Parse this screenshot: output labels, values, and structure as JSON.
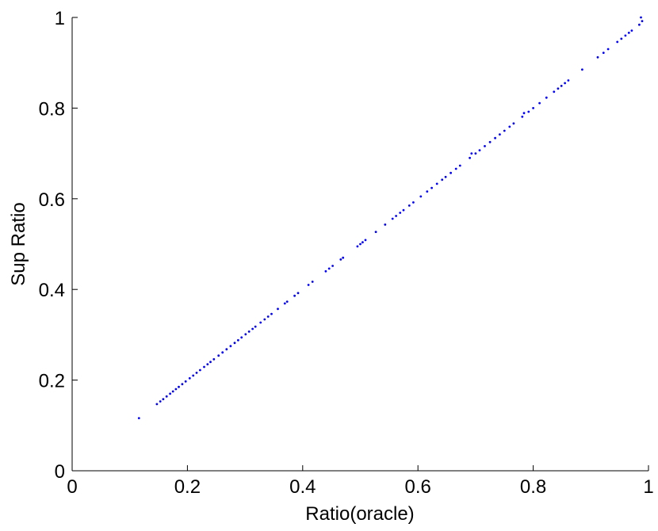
{
  "chart_data": {
    "type": "scatter",
    "title": "",
    "xlabel": "Ratio(oracle)",
    "ylabel": "Sup Ratio",
    "xlim": [
      0,
      1
    ],
    "ylim": [
      0,
      1
    ],
    "x_ticks": [
      "0",
      "0.2",
      "0.4",
      "0.6",
      "0.8",
      "1"
    ],
    "y_ticks": [
      "0",
      "0.2",
      "0.4",
      "0.6",
      "0.8",
      "1"
    ],
    "grid": false,
    "legend": "none",
    "marker_color": "#0000ff",
    "series": [
      {
        "points": [
          [
            0.116,
            0.116
          ],
          [
            0.147,
            0.147
          ],
          [
            0.153,
            0.153
          ],
          [
            0.158,
            0.158
          ],
          [
            0.164,
            0.164
          ],
          [
            0.17,
            0.17
          ],
          [
            0.175,
            0.175
          ],
          [
            0.18,
            0.18
          ],
          [
            0.185,
            0.185
          ],
          [
            0.191,
            0.191
          ],
          [
            0.197,
            0.197
          ],
          [
            0.204,
            0.204
          ],
          [
            0.21,
            0.21
          ],
          [
            0.216,
            0.216
          ],
          [
            0.222,
            0.222
          ],
          [
            0.229,
            0.229
          ],
          [
            0.235,
            0.235
          ],
          [
            0.24,
            0.24
          ],
          [
            0.246,
            0.246
          ],
          [
            0.254,
            0.254
          ],
          [
            0.261,
            0.261
          ],
          [
            0.268,
            0.268
          ],
          [
            0.275,
            0.275
          ],
          [
            0.282,
            0.282
          ],
          [
            0.288,
            0.288
          ],
          [
            0.294,
            0.294
          ],
          [
            0.301,
            0.301
          ],
          [
            0.307,
            0.307
          ],
          [
            0.313,
            0.313
          ],
          [
            0.318,
            0.318
          ],
          [
            0.327,
            0.327
          ],
          [
            0.334,
            0.334
          ],
          [
            0.34,
            0.34
          ],
          [
            0.346,
            0.346
          ],
          [
            0.357,
            0.357
          ],
          [
            0.369,
            0.369
          ],
          [
            0.373,
            0.373
          ],
          [
            0.386,
            0.386
          ],
          [
            0.392,
            0.392
          ],
          [
            0.41,
            0.41
          ],
          [
            0.417,
            0.417
          ],
          [
            0.44,
            0.44
          ],
          [
            0.446,
            0.446
          ],
          [
            0.452,
            0.452
          ],
          [
            0.466,
            0.466
          ],
          [
            0.47,
            0.47
          ],
          [
            0.495,
            0.495
          ],
          [
            0.5,
            0.5
          ],
          [
            0.504,
            0.504
          ],
          [
            0.509,
            0.509
          ],
          [
            0.527,
            0.527
          ],
          [
            0.543,
            0.543
          ],
          [
            0.556,
            0.556
          ],
          [
            0.562,
            0.562
          ],
          [
            0.569,
            0.569
          ],
          [
            0.575,
            0.575
          ],
          [
            0.585,
            0.585
          ],
          [
            0.592,
            0.592
          ],
          [
            0.605,
            0.605
          ],
          [
            0.616,
            0.616
          ],
          [
            0.624,
            0.624
          ],
          [
            0.633,
            0.633
          ],
          [
            0.642,
            0.642
          ],
          [
            0.648,
            0.648
          ],
          [
            0.657,
            0.657
          ],
          [
            0.666,
            0.666
          ],
          [
            0.673,
            0.673
          ],
          [
            0.69,
            0.69
          ],
          [
            0.693,
            0.7
          ],
          [
            0.7,
            0.7
          ],
          [
            0.707,
            0.707
          ],
          [
            0.716,
            0.716
          ],
          [
            0.725,
            0.725
          ],
          [
            0.734,
            0.734
          ],
          [
            0.742,
            0.742
          ],
          [
            0.75,
            0.75
          ],
          [
            0.759,
            0.759
          ],
          [
            0.766,
            0.766
          ],
          [
            0.781,
            0.781
          ],
          [
            0.784,
            0.789
          ],
          [
            0.792,
            0.792
          ],
          [
            0.8,
            0.8
          ],
          [
            0.811,
            0.811
          ],
          [
            0.823,
            0.823
          ],
          [
            0.836,
            0.836
          ],
          [
            0.843,
            0.843
          ],
          [
            0.849,
            0.849
          ],
          [
            0.855,
            0.855
          ],
          [
            0.861,
            0.861
          ],
          [
            0.885,
            0.885
          ],
          [
            0.912,
            0.912
          ],
          [
            0.922,
            0.922
          ],
          [
            0.93,
            0.93
          ],
          [
            0.946,
            0.946
          ],
          [
            0.953,
            0.953
          ],
          [
            0.96,
            0.96
          ],
          [
            0.966,
            0.966
          ],
          [
            0.971,
            0.971
          ],
          [
            0.984,
            0.984
          ],
          [
            0.987,
            1.0
          ],
          [
            0.989,
            0.992
          ]
        ]
      }
    ]
  }
}
